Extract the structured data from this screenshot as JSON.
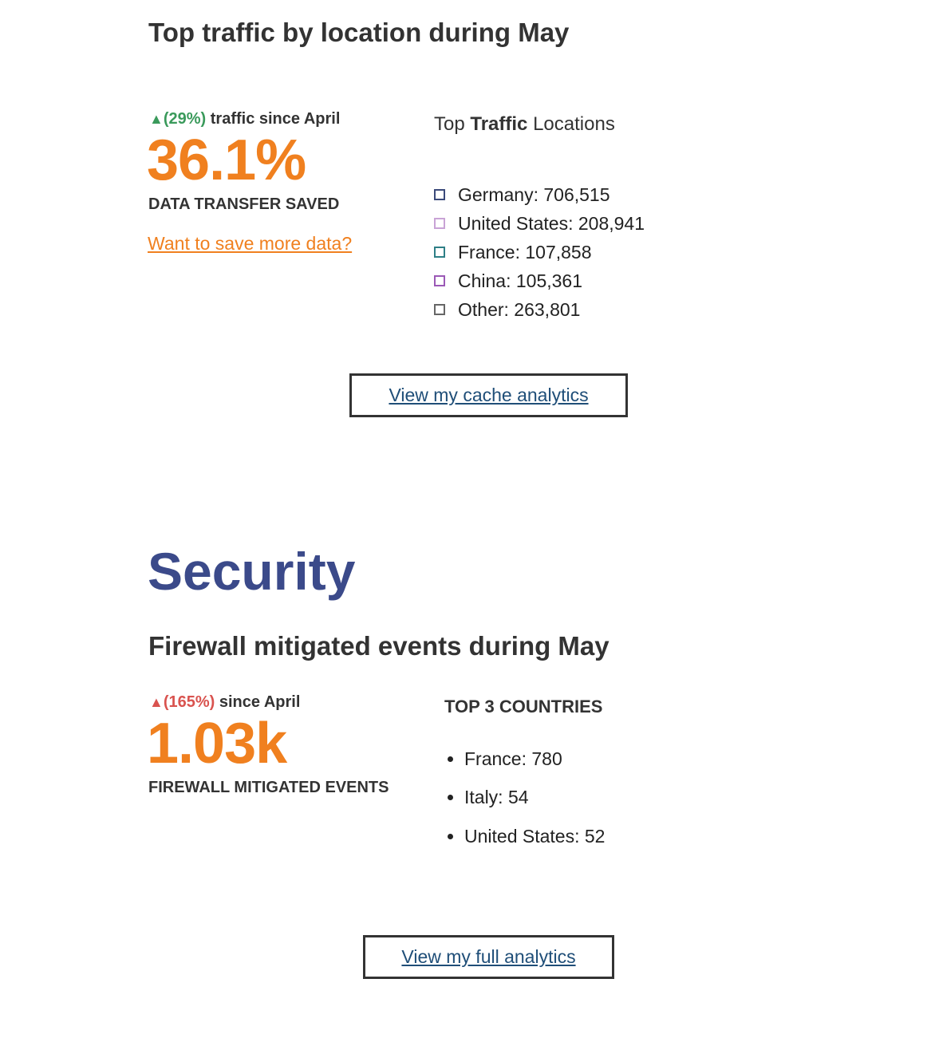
{
  "traffic": {
    "heading": "Top traffic by location during May",
    "change": {
      "arrow": "▲",
      "percent": "(29%)",
      "text": "traffic since April",
      "color": "#3a9a5b"
    },
    "big_number": "36.1%",
    "big_label": "DATA TRANSFER SAVED",
    "link": "Want to save more data?",
    "legend": {
      "title_prefix": "Top ",
      "title_bold": "Traffic",
      "title_suffix": " Locations",
      "items": [
        {
          "label": "Germany: 706,515",
          "color": "#3b4a7a"
        },
        {
          "label": "United States: 208,941",
          "color": "#c9a3d6"
        },
        {
          "label": "France: 107,858",
          "color": "#2e7f86"
        },
        {
          "label": "China: 105,361",
          "color": "#9b59b6"
        },
        {
          "label": "Other: 263,801",
          "color": "#666666"
        }
      ]
    },
    "button": "View my cache analytics"
  },
  "security": {
    "title": "Security",
    "heading": "Firewall mitigated events during May",
    "change": {
      "arrow": "▲",
      "percent": "(165%)",
      "text": "since April",
      "color": "#d9534f"
    },
    "big_number": "1.03k",
    "big_label": "FIREWALL MITIGATED EVENTS",
    "countries_title": "TOP 3 COUNTRIES",
    "countries": [
      "France: 780",
      "Italy: 54",
      "United States: 52"
    ],
    "button": "View my full analytics"
  }
}
